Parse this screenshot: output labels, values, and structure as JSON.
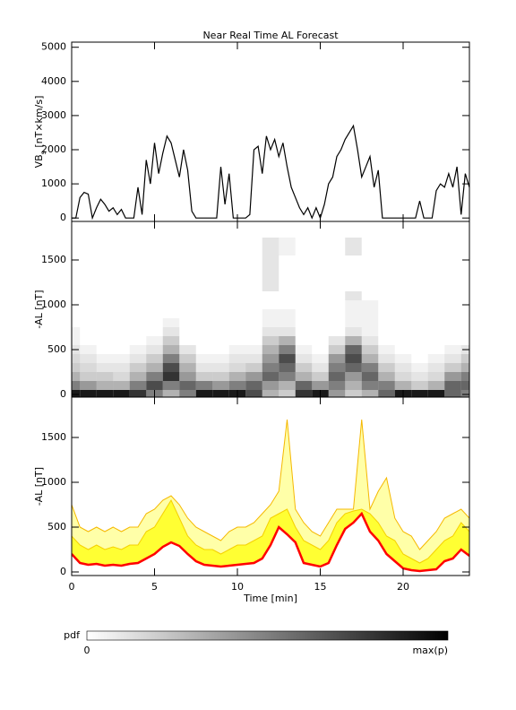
{
  "chart_data": [
    {
      "type": "line",
      "title": "Near Real Time AL Forecast",
      "ylabel": [
        "VB",
        "s",
        " [nT×km/s]"
      ],
      "xlim": [
        0,
        24
      ],
      "xticks": [
        0,
        5,
        10,
        15,
        20
      ],
      "ylim": [
        -100,
        5150
      ],
      "yticks": [
        0,
        1000,
        2000,
        3000,
        4000,
        5000
      ],
      "x": [
        0,
        0.25,
        0.5,
        0.75,
        1,
        1.25,
        1.5,
        1.75,
        2,
        2.25,
        2.5,
        2.75,
        3,
        3.25,
        3.5,
        3.75,
        4,
        4.25,
        4.5,
        4.75,
        5,
        5.25,
        5.5,
        5.75,
        6,
        6.25,
        6.5,
        6.75,
        7,
        7.25,
        7.5,
        7.75,
        8,
        8.25,
        8.5,
        8.75,
        9,
        9.25,
        9.5,
        9.75,
        10,
        10.25,
        10.5,
        10.75,
        11,
        11.25,
        11.5,
        11.75,
        12,
        12.25,
        12.5,
        12.75,
        13,
        13.25,
        13.5,
        13.75,
        14,
        14.25,
        14.5,
        14.75,
        15,
        15.25,
        15.5,
        15.75,
        16,
        16.25,
        16.5,
        16.75,
        17,
        17.25,
        17.5,
        17.75,
        18,
        18.25,
        18.5,
        18.75,
        19,
        19.25,
        19.5,
        19.75,
        20,
        20.25,
        20.5,
        20.75,
        21,
        21.25,
        21.5,
        21.75,
        22,
        22.25,
        22.5,
        22.75,
        23,
        23.25,
        23.5,
        23.75,
        24
      ],
      "series": [
        {
          "color": "#000000",
          "values": [
            0,
            0,
            600,
            750,
            700,
            0,
            300,
            550,
            400,
            200,
            300,
            100,
            250,
            0,
            0,
            0,
            900,
            100,
            1700,
            1000,
            2200,
            1300,
            1900,
            2400,
            2200,
            1700,
            1200,
            2000,
            1400,
            200,
            0,
            0,
            0,
            0,
            0,
            0,
            1500,
            400,
            1300,
            0,
            0,
            0,
            0,
            100,
            2000,
            2100,
            1300,
            2400,
            2000,
            2300,
            1800,
            2200,
            1500,
            900,
            600,
            300,
            100,
            300,
            0,
            300,
            0,
            400,
            1000,
            1200,
            1800,
            2000,
            2300,
            2500,
            2700,
            2000,
            1200,
            1500,
            1800,
            900,
            1400,
            0,
            0,
            0,
            0,
            0,
            0,
            0,
            0,
            0,
            500,
            0,
            0,
            0,
            800,
            1000,
            900,
            1300,
            900,
            1500,
            100,
            1300,
            900
          ]
        }
      ]
    },
    {
      "type": "heatmap",
      "ylabel": "-AL [nT]",
      "xlim": [
        0,
        24
      ],
      "xticks": [
        0,
        5,
        10,
        15,
        20
      ],
      "ylim": [
        -30,
        1930
      ],
      "yticks": [
        0,
        500,
        1000,
        1500
      ],
      "color": "#000000",
      "x": [
        0,
        1,
        2,
        3,
        4,
        5,
        6,
        7,
        8,
        9,
        10,
        11,
        12,
        13,
        14,
        15,
        16,
        17,
        18,
        19,
        20,
        21,
        22,
        23,
        24
      ],
      "y": [
        0,
        100,
        200,
        300,
        400,
        500,
        600,
        700,
        800,
        900,
        1000,
        1100,
        1200,
        1300,
        1400,
        1500,
        1600,
        1700
      ],
      "z": [
        [
          0.9,
          0.5,
          0.3,
          0.2,
          0.15,
          0.1,
          0.05,
          0.05,
          0,
          0,
          0,
          0,
          0,
          0,
          0,
          0,
          0,
          0
        ],
        [
          0.9,
          0.4,
          0.2,
          0.15,
          0.1,
          0.05,
          0,
          0,
          0,
          0,
          0,
          0,
          0,
          0,
          0,
          0,
          0,
          0
        ],
        [
          0.9,
          0.3,
          0.2,
          0.1,
          0.05,
          0,
          0,
          0,
          0,
          0,
          0,
          0,
          0,
          0,
          0,
          0,
          0,
          0
        ],
        [
          0.9,
          0.3,
          0.15,
          0.1,
          0.05,
          0,
          0,
          0,
          0,
          0,
          0,
          0,
          0,
          0,
          0,
          0,
          0,
          0
        ],
        [
          0.8,
          0.5,
          0.3,
          0.2,
          0.1,
          0.05,
          0,
          0,
          0,
          0,
          0,
          0,
          0,
          0,
          0,
          0,
          0,
          0
        ],
        [
          0.5,
          0.7,
          0.5,
          0.3,
          0.2,
          0.1,
          0.05,
          0,
          0,
          0,
          0,
          0,
          0,
          0,
          0,
          0,
          0,
          0
        ],
        [
          0.3,
          0.5,
          0.8,
          0.7,
          0.5,
          0.3,
          0.2,
          0.1,
          0.05,
          0,
          0,
          0,
          0,
          0,
          0,
          0,
          0,
          0
        ],
        [
          0.5,
          0.6,
          0.4,
          0.3,
          0.2,
          0.1,
          0,
          0,
          0,
          0,
          0,
          0,
          0,
          0,
          0,
          0,
          0,
          0
        ],
        [
          0.9,
          0.5,
          0.2,
          0.1,
          0.05,
          0,
          0,
          0,
          0,
          0,
          0,
          0,
          0,
          0,
          0,
          0,
          0,
          0
        ],
        [
          0.9,
          0.4,
          0.2,
          0.1,
          0.05,
          0,
          0,
          0,
          0,
          0,
          0,
          0,
          0,
          0,
          0,
          0,
          0,
          0
        ],
        [
          0.9,
          0.5,
          0.3,
          0.15,
          0.1,
          0.05,
          0,
          0,
          0,
          0,
          0,
          0,
          0,
          0,
          0,
          0,
          0,
          0
        ],
        [
          0.7,
          0.6,
          0.4,
          0.2,
          0.1,
          0.05,
          0,
          0,
          0,
          0,
          0,
          0,
          0,
          0,
          0,
          0,
          0,
          0
        ],
        [
          0.3,
          0.4,
          0.6,
          0.5,
          0.4,
          0.3,
          0.2,
          0.1,
          0.05,
          0.05,
          0,
          0,
          0.1,
          0.1,
          0.1,
          0.1,
          0.1,
          0.1
        ],
        [
          0.2,
          0.3,
          0.5,
          0.6,
          0.7,
          0.5,
          0.3,
          0.1,
          0.05,
          0.05,
          0,
          0,
          0,
          0,
          0,
          0,
          0.05,
          0.05
        ],
        [
          0.8,
          0.6,
          0.3,
          0.2,
          0.1,
          0.05,
          0,
          0,
          0,
          0,
          0,
          0,
          0,
          0,
          0,
          0,
          0,
          0
        ],
        [
          0.9,
          0.4,
          0.2,
          0.1,
          0.05,
          0,
          0,
          0,
          0,
          0,
          0,
          0,
          0,
          0,
          0,
          0,
          0,
          0
        ],
        [
          0.4,
          0.5,
          0.6,
          0.5,
          0.4,
          0.2,
          0.1,
          0,
          0,
          0,
          0,
          0,
          0,
          0,
          0,
          0,
          0,
          0
        ],
        [
          0.2,
          0.3,
          0.4,
          0.6,
          0.7,
          0.6,
          0.3,
          0.1,
          0.05,
          0.05,
          0.05,
          0.1,
          0,
          0,
          0,
          0,
          0.1,
          0.1
        ],
        [
          0.3,
          0.5,
          0.6,
          0.5,
          0.3,
          0.2,
          0.1,
          0.05,
          0.05,
          0.05,
          0.05,
          0,
          0,
          0,
          0,
          0,
          0,
          0
        ],
        [
          0.6,
          0.5,
          0.3,
          0.2,
          0.1,
          0.05,
          0,
          0,
          0,
          0,
          0,
          0,
          0,
          0,
          0,
          0,
          0,
          0
        ],
        [
          0.9,
          0.3,
          0.15,
          0.1,
          0.05,
          0,
          0,
          0,
          0,
          0,
          0,
          0,
          0,
          0,
          0,
          0,
          0,
          0
        ],
        [
          0.9,
          0.2,
          0.1,
          0.05,
          0,
          0,
          0,
          0,
          0,
          0,
          0,
          0,
          0,
          0,
          0,
          0,
          0,
          0
        ],
        [
          0.9,
          0.3,
          0.15,
          0.1,
          0.05,
          0,
          0,
          0,
          0,
          0,
          0,
          0,
          0,
          0,
          0,
          0,
          0,
          0
        ],
        [
          0.6,
          0.6,
          0.4,
          0.2,
          0.1,
          0.05,
          0,
          0,
          0,
          0,
          0,
          0,
          0,
          0,
          0,
          0,
          0,
          0
        ],
        [
          0.5,
          0.6,
          0.5,
          0.3,
          0.2,
          0.1,
          0,
          0,
          0,
          0,
          0,
          0,
          0,
          0,
          0,
          0,
          0,
          0
        ]
      ]
    },
    {
      "type": "area",
      "ylabel": "-AL [nT]",
      "xlabel": "Time [min]",
      "xlim": [
        0,
        24
      ],
      "xticks": [
        0,
        5,
        10,
        15,
        20
      ],
      "ylim": [
        -40,
        1950
      ],
      "yticks": [
        0,
        500,
        1000,
        1500
      ],
      "x": [
        0,
        0.5,
        1,
        1.5,
        2,
        2.5,
        3,
        3.5,
        4,
        4.5,
        5,
        5.5,
        6,
        6.5,
        7,
        7.5,
        8,
        8.5,
        9,
        9.5,
        10,
        10.5,
        11,
        11.5,
        12,
        12.5,
        13,
        13.5,
        14,
        14.5,
        15,
        15.5,
        16,
        16.5,
        17,
        17.5,
        18,
        18.5,
        19,
        19.5,
        20,
        20.5,
        21,
        21.5,
        22,
        22.5,
        23,
        23.5,
        24
      ],
      "series": [
        {
          "color": "#f5b800",
          "fill": "#ffffa8",
          "width": 1,
          "values": [
            750,
            500,
            450,
            500,
            450,
            500,
            450,
            500,
            500,
            650,
            700,
            800,
            850,
            750,
            600,
            500,
            450,
            400,
            350,
            450,
            500,
            500,
            550,
            650,
            750,
            900,
            1700,
            700,
            550,
            450,
            400,
            550,
            700,
            700,
            700,
            1700,
            700,
            900,
            1050,
            600,
            450,
            400,
            250,
            350,
            450,
            600,
            650,
            700,
            600
          ]
        },
        {
          "color": "#f5d000",
          "fill": "#ffff33",
          "width": 1,
          "values": [
            400,
            300,
            250,
            300,
            250,
            280,
            250,
            300,
            300,
            450,
            500,
            650,
            800,
            600,
            400,
            300,
            250,
            250,
            200,
            250,
            300,
            300,
            350,
            400,
            600,
            650,
            700,
            500,
            350,
            300,
            250,
            350,
            550,
            650,
            680,
            700,
            650,
            550,
            400,
            350,
            200,
            150,
            100,
            150,
            250,
            350,
            400,
            550,
            450
          ]
        },
        {
          "color": "#ff0000",
          "fill": "#ffffff",
          "width": 2.5,
          "values": [
            200,
            100,
            80,
            90,
            70,
            80,
            70,
            90,
            100,
            150,
            200,
            280,
            330,
            290,
            200,
            120,
            80,
            70,
            60,
            70,
            80,
            90,
            100,
            150,
            300,
            500,
            420,
            330,
            100,
            80,
            60,
            100,
            300,
            480,
            550,
            650,
            450,
            350,
            200,
            120,
            40,
            20,
            10,
            20,
            30,
            120,
            150,
            250,
            180
          ]
        }
      ]
    }
  ],
  "colorbar": {
    "label": "pdf",
    "min_label": "0",
    "max_label": "max(p)",
    "colors": [
      "#ffffff",
      "#000000"
    ]
  }
}
